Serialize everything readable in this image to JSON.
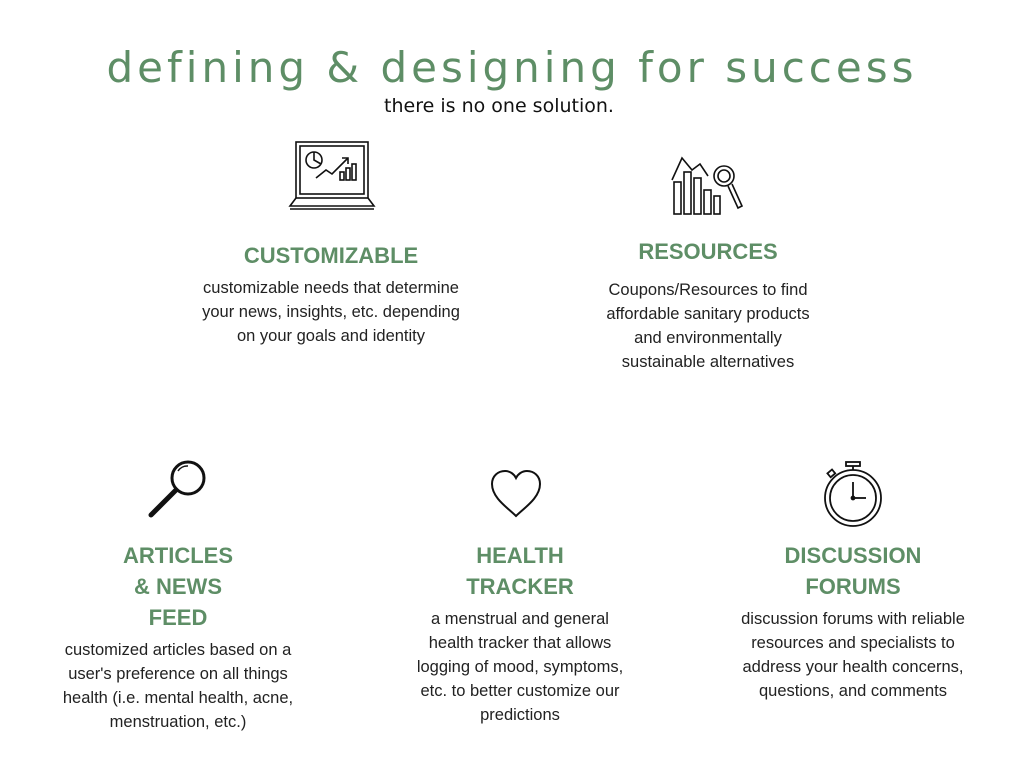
{
  "header": {
    "title": "defining & designing for success",
    "subtitle": "there is no one solution."
  },
  "colors": {
    "accent": "#5e8e66",
    "text": "#222222"
  },
  "features": [
    {
      "icon": "laptop-chart-icon",
      "heading": "CUSTOMIZABLE",
      "description": "customizable needs that determine your news, insights, etc. depending on your goals and identity"
    },
    {
      "icon": "bar-chart-magnifier-icon",
      "heading": "RESOURCES",
      "description": "Coupons/Resources to find affordable sanitary products and environmentally sustainable alternatives"
    },
    {
      "icon": "magnifying-glass-icon",
      "heading": "ARTICLES & NEWS FEED",
      "description": "customized articles based on a user's preference on all things health (i.e. mental health, acne, menstruation, etc.)"
    },
    {
      "icon": "heart-icon",
      "heading": "HEALTH TRACKER",
      "description": "a menstrual and general health tracker that allows logging of mood, symptoms, etc. to better customize our predictions"
    },
    {
      "icon": "stopwatch-icon",
      "heading": "DISCUSSION FORUMS",
      "description": "discussion forums with reliable resources and specialists to address your health concerns, questions, and comments"
    }
  ]
}
